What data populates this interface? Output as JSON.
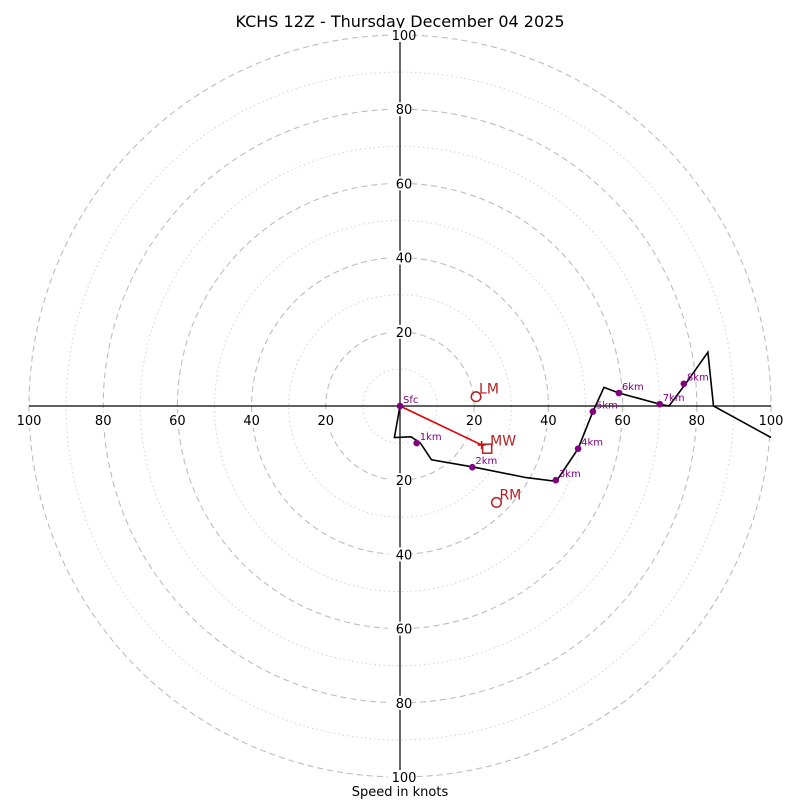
{
  "chart_data": {
    "type": "hodograph",
    "title": "KCHS 12Z - Thursday December 04 2025",
    "xlabel": "Speed in knots",
    "ylabel": "",
    "units": "knots",
    "range": [
      -100,
      100
    ],
    "major_rings": [
      20,
      40,
      60,
      80,
      100
    ],
    "minor_rings": [
      10,
      30,
      50,
      70,
      90
    ],
    "x_ticks": [
      -100,
      -80,
      -60,
      -40,
      -20,
      20,
      40,
      60,
      80,
      100
    ],
    "x_tick_labels": [
      "100",
      "80",
      "60",
      "40",
      "20",
      "20",
      "40",
      "60",
      "80",
      "100"
    ],
    "y_ticks": [
      100,
      80,
      60,
      40,
      20,
      -20,
      -40,
      -60,
      -80,
      -100
    ],
    "y_tick_labels": [
      "100",
      "80",
      "60",
      "40",
      "20",
      "20",
      "40",
      "60",
      "80",
      "100"
    ],
    "hodograph": {
      "u": [
        0,
        -1.5,
        3,
        5.5,
        8.5,
        20,
        34,
        42,
        43,
        48,
        52,
        55,
        59,
        70,
        72.5,
        77,
        83,
        84.5,
        100
      ],
      "v": [
        0,
        -8.5,
        -8.3,
        -10,
        -14.5,
        -16.5,
        -19.3,
        -20.3,
        -19,
        -11.5,
        -1.5,
        5,
        3.5,
        0.5,
        0,
        6,
        14.5,
        0,
        -8.5
      ]
    },
    "height_points": [
      {
        "label": "Sfc",
        "u": 0,
        "v": 0
      },
      {
        "label": "1km",
        "u": 4.5,
        "v": -10
      },
      {
        "label": "2km",
        "u": 19.5,
        "v": -16.5
      },
      {
        "label": "3km",
        "u": 42,
        "v": -20
      },
      {
        "label": "4km",
        "u": 48,
        "v": -11.5
      },
      {
        "label": "5km",
        "u": 52,
        "v": -1.5
      },
      {
        "label": "6km",
        "u": 59,
        "v": 3.5
      },
      {
        "label": "7km",
        "u": 70,
        "v": 0.5
      },
      {
        "label": "8km",
        "u": 76.5,
        "v": 6
      }
    ],
    "storm_motion": [
      {
        "label": "LM",
        "u": 20.5,
        "v": 2.5,
        "marker": "circle"
      },
      {
        "label": "MW",
        "u": 23.5,
        "v": -11.5,
        "marker": "square"
      },
      {
        "label": "RM",
        "u": 26,
        "v": -26,
        "marker": "circle"
      }
    ],
    "shear_vector": {
      "from": [
        0,
        0
      ],
      "to": [
        22,
        -10.5
      ]
    },
    "colors": {
      "hodograph": "#000000",
      "points": "#800080",
      "storm": "#b22222",
      "shear": "#e00000",
      "rings": "#bdbdbd"
    }
  }
}
